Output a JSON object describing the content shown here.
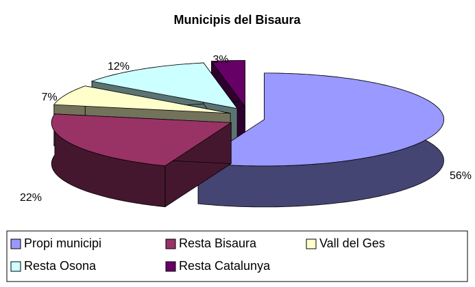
{
  "chart_data": {
    "type": "pie",
    "title": "Municipis del Bisaura",
    "categories": [
      "Propi municipi",
      "Resta Bisaura",
      "Vall del Ges",
      "Resta Osona",
      "Resta Catalunya"
    ],
    "values": [
      56,
      22,
      7,
      12,
      3
    ],
    "value_labels": [
      "56%",
      "22%",
      "7%",
      "12%",
      "3%"
    ],
    "colors": [
      "#9999ff",
      "#993366",
      "#ffffcc",
      "#ccffff",
      "#660066"
    ],
    "legend": "bottom"
  }
}
